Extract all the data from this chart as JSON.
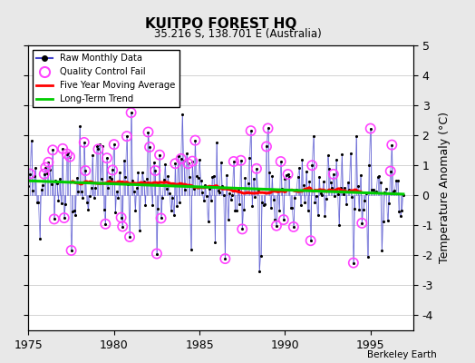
{
  "title": "KUITPO FOREST HQ",
  "subtitle": "35.216 S, 138.701 E (Australia)",
  "ylabel": "Temperature Anomaly (°C)",
  "xlim": [
    1975,
    1997.5
  ],
  "ylim": [
    -4.5,
    5
  ],
  "yticks": [
    -4,
    -3,
    -2,
    -1,
    0,
    1,
    2,
    3,
    4,
    5
  ],
  "xticks": [
    1975,
    1980,
    1985,
    1990,
    1995
  ],
  "watermark": "Berkeley Earth",
  "bg_color": "#e8e8e8",
  "plot_bg_color": "#ffffff",
  "raw_line_color": "#4444cc",
  "stem_color": "#8888dd",
  "qc_color": "#ff44ff",
  "moving_avg_color": "#ff0000",
  "trend_color": "#00cc00",
  "raw_dot_color": "#000000",
  "grid_color": "#cccccc"
}
